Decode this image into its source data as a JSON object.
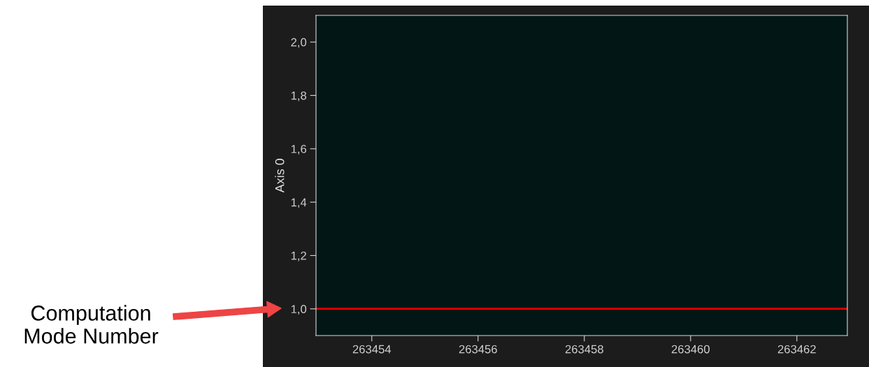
{
  "chart_data": {
    "type": "line",
    "ylabel": "Axis 0",
    "series": [
      {
        "color": "#e00000",
        "x": [
          263452.95,
          263462.95
        ],
        "values": [
          1.0,
          1.0
        ]
      }
    ],
    "xlim": [
      263452.95,
      263462.95
    ],
    "xticks": [
      263454,
      263456,
      263458,
      263460,
      263462
    ],
    "ylim": [
      0.9,
      2.1
    ],
    "yticks": [
      {
        "value": 1.0,
        "label": "1,0"
      },
      {
        "value": 1.2,
        "label": "1,2"
      },
      {
        "value": 1.4,
        "label": "1,4"
      },
      {
        "value": 1.6,
        "label": "1,6"
      },
      {
        "value": 1.8,
        "label": "1,8"
      },
      {
        "value": 2.0,
        "label": "2,0"
      }
    ],
    "grid": false,
    "marker": "none",
    "line_style": "solid",
    "annotations": [
      "Computation\nMode Number"
    ]
  }
}
